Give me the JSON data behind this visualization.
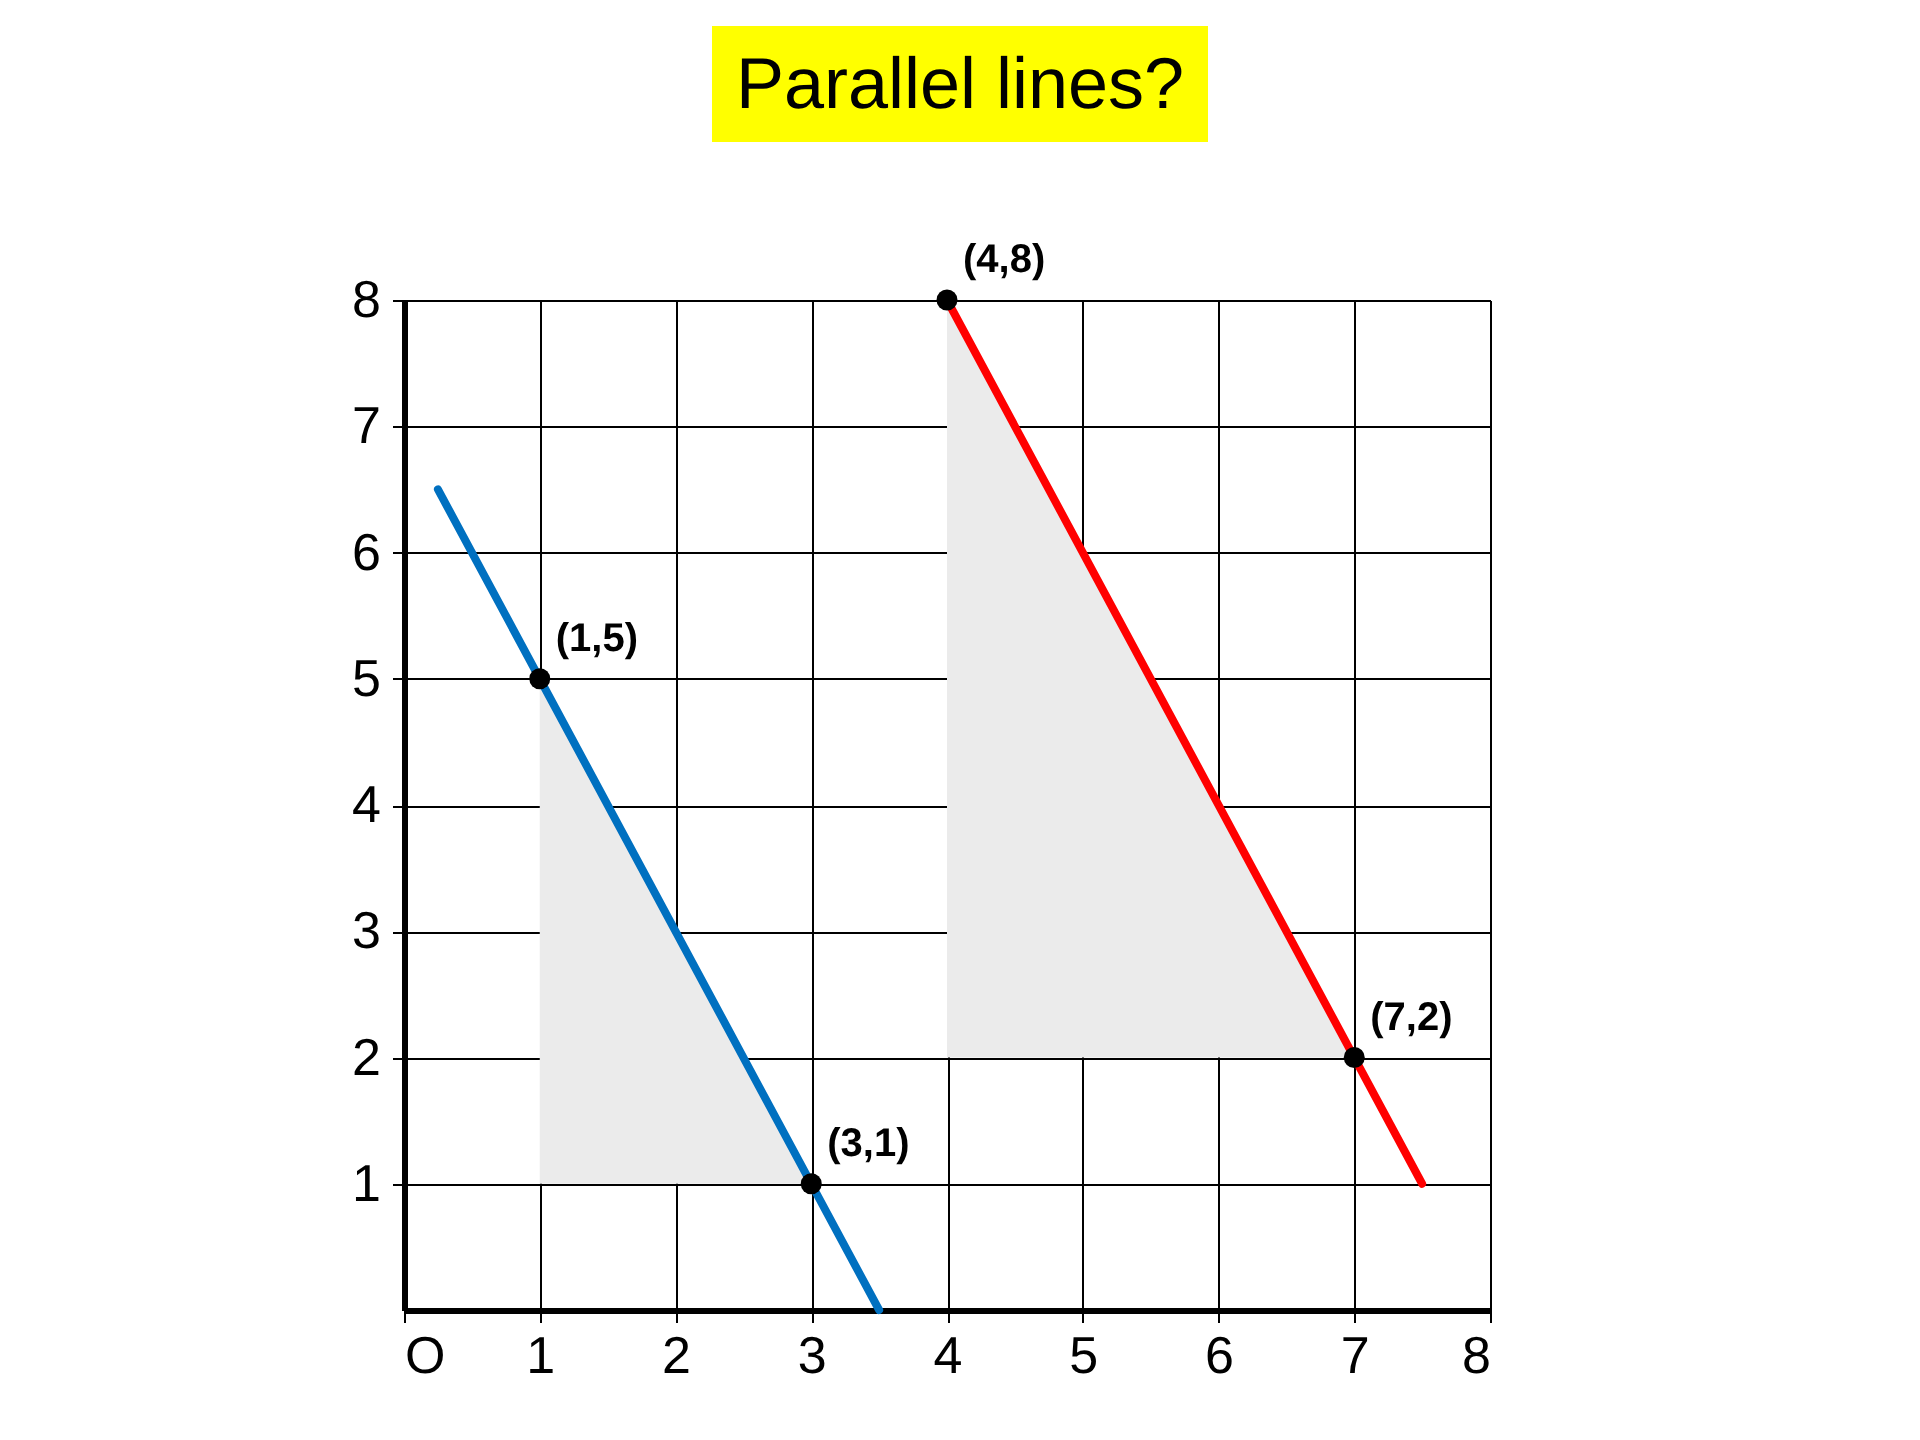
{
  "chart_data": {
    "type": "line",
    "title": "Parallel lines?",
    "xlim": [
      0,
      8
    ],
    "ylim": [
      0,
      8
    ],
    "xticks": [
      {
        "value": 0,
        "label": "O"
      },
      1,
      2,
      3,
      4,
      5,
      6,
      7,
      8
    ],
    "yticks": [
      1,
      2,
      3,
      4,
      5,
      6,
      7,
      8
    ],
    "grid": true,
    "line_style": "solid",
    "series": [
      {
        "type": "area",
        "color": "#ebebeb",
        "x": [
          1,
          1,
          3
        ],
        "values": [
          1,
          5,
          1
        ]
      },
      {
        "type": "area",
        "color": "#ebebeb",
        "x": [
          4,
          4,
          7
        ],
        "values": [
          2,
          8,
          2
        ]
      },
      {
        "color": "#0070c0",
        "x": [
          0.25,
          3.5
        ],
        "values": [
          6.5,
          0
        ]
      },
      {
        "color": "#ff0000",
        "x": [
          4,
          7.5
        ],
        "values": [
          8,
          1
        ]
      },
      {
        "type": "scatter",
        "color": "#000000",
        "x": [
          1,
          3,
          4,
          7
        ],
        "values": [
          5,
          1,
          8,
          2
        ],
        "marker": "circle"
      }
    ],
    "annotations": [
      {
        "text": "(1,5)",
        "x": 1,
        "y": 5
      },
      {
        "text": "(3,1)",
        "x": 3,
        "y": 1
      },
      {
        "text": "(4,8)",
        "x": 4,
        "y": 8
      },
      {
        "text": "(7,2)",
        "x": 7,
        "y": 2
      }
    ]
  }
}
